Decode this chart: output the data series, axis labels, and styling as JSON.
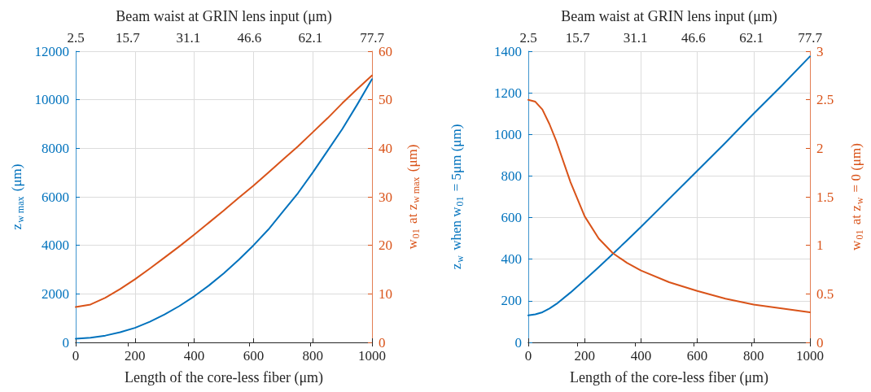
{
  "chart_data": [
    {
      "type": "line",
      "xlabel": "Length of the core-less fiber (μm)",
      "x2label": "Beam waist at GRIN lens input (μm)",
      "ylabel": "z$_{w max}$ (μm)",
      "y2label": "w$_{01}$ at z$_{w max}$ (μm)",
      "x": [
        0,
        50,
        100,
        150,
        200,
        250,
        300,
        350,
        400,
        450,
        500,
        550,
        600,
        650,
        700,
        750,
        800,
        850,
        900,
        950,
        1000
      ],
      "series": [
        {
          "color": "#0072bd",
          "values": [
            150,
            190,
            280,
            420,
            600,
            850,
            1150,
            1500,
            1900,
            2350,
            2850,
            3400,
            4000,
            4650,
            5400,
            6150,
            7000,
            7900,
            8800,
            9800,
            10850
          ]
        },
        {
          "color": "#d95319",
          "axis": "y2",
          "values": [
            7.3,
            7.8,
            9.2,
            11,
            13,
            15.2,
            17.5,
            19.8,
            22.2,
            24.7,
            27.2,
            29.8,
            32.3,
            35,
            37.7,
            40.4,
            43.3,
            46.2,
            49.3,
            52.2,
            55
          ]
        }
      ],
      "xlim": [
        0,
        1000
      ],
      "xticks": [
        0,
        200,
        400,
        600,
        800,
        1000
      ],
      "x2lim": [
        2.5,
        77.7
      ],
      "x2ticks": [
        2.5,
        15.7,
        31.1,
        46.6,
        62.1,
        77.7
      ],
      "ylim": [
        0,
        12000
      ],
      "yticks": [
        0,
        2000,
        4000,
        6000,
        8000,
        10000,
        12000
      ],
      "y2lim": [
        0,
        60
      ],
      "y2ticks": [
        0,
        10,
        20,
        30,
        40,
        50,
        60
      ],
      "grid": true,
      "marker": "none",
      "line_style": "solid"
    },
    {
      "type": "line",
      "xlabel": "Length of the core-less fiber (μm)",
      "x2label": "Beam waist at GRIN lens input (μm)",
      "ylabel": "z$_{w}$ when w$_{01}$ = 5μm (μm)",
      "y2label": "w$_{01}$ at z$_{w}$ = 0 (μm)",
      "x": [
        0,
        25,
        50,
        75,
        100,
        150,
        200,
        250,
        300,
        350,
        400,
        500,
        600,
        700,
        800,
        900,
        1000
      ],
      "series": [
        {
          "color": "#0072bd",
          "values": [
            130,
            135,
            145,
            163,
            185,
            240,
            300,
            362,
            425,
            490,
            555,
            690,
            825,
            960,
            1100,
            1235,
            1375
          ]
        },
        {
          "color": "#d95319",
          "axis": "y2",
          "values": [
            2.5,
            2.48,
            2.4,
            2.25,
            2.07,
            1.65,
            1.3,
            1.07,
            0.92,
            0.82,
            0.74,
            0.62,
            0.53,
            0.45,
            0.39,
            0.35,
            0.31
          ]
        }
      ],
      "xlim": [
        0,
        1000
      ],
      "xticks": [
        0,
        200,
        400,
        600,
        800,
        1000
      ],
      "x2lim": [
        2.5,
        77.7
      ],
      "x2ticks": [
        2.5,
        15.7,
        31.1,
        46.6,
        62.1,
        77.7
      ],
      "ylim": [
        0,
        1400
      ],
      "yticks": [
        0,
        200,
        400,
        600,
        800,
        1000,
        1200,
        1400
      ],
      "y2lim": [
        0,
        3
      ],
      "y2ticks": [
        0,
        0.5,
        1,
        1.5,
        2,
        2.5,
        3
      ],
      "grid": true,
      "marker": "none",
      "line_style": "solid"
    }
  ]
}
